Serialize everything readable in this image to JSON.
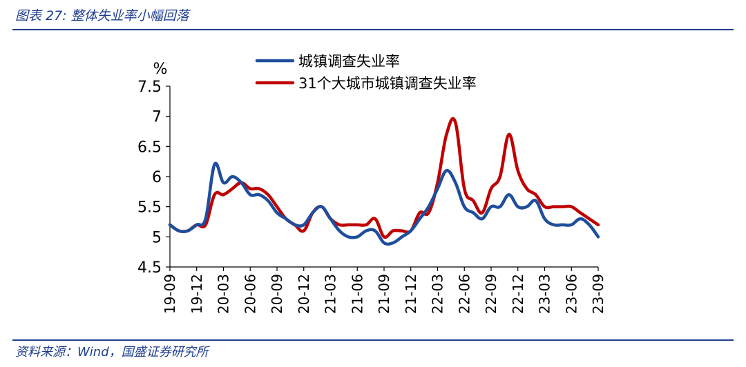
{
  "header": {
    "title": "图表 27:  整体失业率小幅回落"
  },
  "footer": {
    "source": "资料来源：Wind，国盛证券研究所"
  },
  "colors": {
    "accent": "#1f3f8f",
    "series_1": "#1f4e9c",
    "series_2": "#c00000"
  },
  "chart_data": {
    "type": "line",
    "title": "",
    "xlabel": "",
    "ylabel": "%",
    "ylim": [
      4.5,
      7.5
    ],
    "yticks": [
      "7.5",
      "7",
      "6.5",
      "6",
      "5.5",
      "5",
      "4.5"
    ],
    "ytick_values": [
      7.5,
      7.0,
      6.5,
      6.0,
      5.5,
      5.0,
      4.5
    ],
    "x": [
      "19-09",
      "19-10",
      "19-11",
      "19-12",
      "20-01",
      "20-02",
      "20-03",
      "20-04",
      "20-05",
      "20-06",
      "20-07",
      "20-08",
      "20-09",
      "20-10",
      "20-11",
      "20-12",
      "21-01",
      "21-02",
      "21-03",
      "21-04",
      "21-05",
      "21-06",
      "21-07",
      "21-08",
      "21-09",
      "21-10",
      "21-11",
      "21-12",
      "22-01",
      "22-02",
      "22-03",
      "22-04",
      "22-05",
      "22-06",
      "22-07",
      "22-08",
      "22-09",
      "22-10",
      "22-11",
      "22-12",
      "23-01",
      "23-02",
      "23-03",
      "23-04",
      "23-05",
      "23-06",
      "23-07",
      "23-08",
      "23-09"
    ],
    "xticks": [
      "19-09",
      "19-12",
      "20-03",
      "20-06",
      "20-09",
      "20-12",
      "21-03",
      "21-06",
      "21-09",
      "21-12",
      "22-03",
      "22-06",
      "22-09",
      "22-12",
      "23-03",
      "23-06",
      "23-09"
    ],
    "legend_position": "top",
    "grid": false,
    "series": [
      {
        "name": "城镇调查失业率",
        "color": "#1f4e9c",
        "values": [
          5.2,
          5.1,
          5.1,
          5.2,
          5.3,
          6.2,
          5.9,
          6.0,
          5.9,
          5.7,
          5.7,
          5.6,
          5.4,
          5.3,
          5.2,
          5.2,
          5.4,
          5.5,
          5.3,
          5.1,
          5.0,
          5.0,
          5.1,
          5.1,
          4.9,
          4.9,
          5.0,
          5.1,
          5.3,
          5.5,
          5.8,
          6.1,
          5.9,
          5.5,
          5.4,
          5.3,
          5.5,
          5.5,
          5.7,
          5.5,
          5.5,
          5.6,
          5.3,
          5.2,
          5.2,
          5.2,
          5.3,
          5.2,
          5.0
        ]
      },
      {
        "name": "31个大城市城镇调查失业率",
        "color": "#c00000",
        "values": [
          5.2,
          5.1,
          5.1,
          5.2,
          5.2,
          5.7,
          5.7,
          5.8,
          5.9,
          5.8,
          5.8,
          5.7,
          5.5,
          5.3,
          5.2,
          5.1,
          5.4,
          5.5,
          5.3,
          5.2,
          5.2,
          5.2,
          5.2,
          5.3,
          5.0,
          5.1,
          5.1,
          5.1,
          5.4,
          5.4,
          5.9,
          6.7,
          6.9,
          5.8,
          5.6,
          5.4,
          5.8,
          6.0,
          6.7,
          6.1,
          5.8,
          5.7,
          5.5,
          5.5,
          5.5,
          5.5,
          5.4,
          5.3,
          5.2
        ]
      }
    ]
  }
}
